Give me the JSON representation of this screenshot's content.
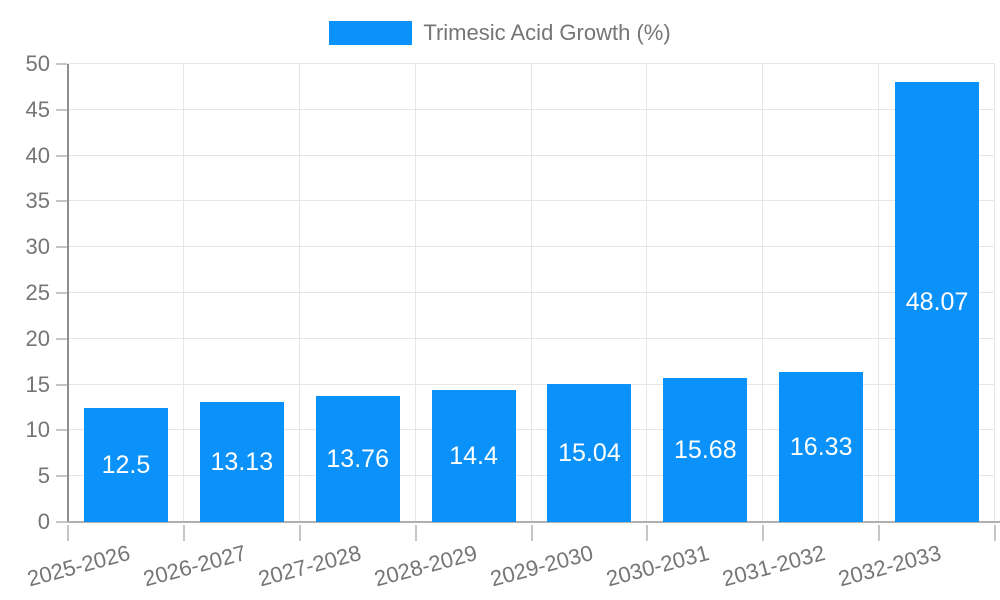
{
  "legend": {
    "series_label": "Trimesic Acid Growth (%)"
  },
  "chart_data": {
    "type": "bar",
    "title": "",
    "series_name": "Trimesic Acid Growth (%)",
    "categories": [
      "2025-2026",
      "2026-2027",
      "2027-2028",
      "2028-2029",
      "2029-2030",
      "2030-2031",
      "2031-2032",
      "2032-2033"
    ],
    "values": [
      12.5,
      13.13,
      13.76,
      14.4,
      15.04,
      15.68,
      16.33,
      48.07
    ],
    "value_labels": [
      "12.5",
      "13.13",
      "13.76",
      "14.4",
      "15.04",
      "15.68",
      "16.33",
      "48.07"
    ],
    "xlabel": "",
    "ylabel": "",
    "ylim": [
      0,
      50
    ],
    "yticks": [
      0,
      5,
      10,
      15,
      20,
      25,
      30,
      35,
      40,
      45,
      50
    ],
    "grid": true,
    "legend_position": "top-center",
    "x_label_rotation_deg": -15,
    "bar_value_labels_inside": true,
    "colors": {
      "bar": "#0a91fa",
      "bar_label": "#ffffff",
      "grid": "#e6e6e6",
      "y_axis_line": "#8f8f8f",
      "x_axis_line": "#b0b0b0",
      "tick": "#c6c6c6",
      "text": "#757575",
      "background": "#ffffff"
    }
  }
}
